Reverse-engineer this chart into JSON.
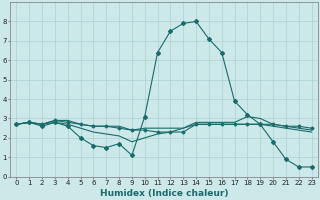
{
  "title": "",
  "xlabel": "Humidex (Indice chaleur)",
  "ylabel": "",
  "bg_color": "#cce8e8",
  "grid_color": "#aad0d0",
  "line_color": "#1a6b6b",
  "xlim": [
    -0.5,
    23.5
  ],
  "ylim": [
    0,
    9
  ],
  "xticks": [
    0,
    1,
    2,
    3,
    4,
    5,
    6,
    7,
    8,
    9,
    10,
    11,
    12,
    13,
    14,
    15,
    16,
    17,
    18,
    19,
    20,
    21,
    22,
    23
  ],
  "yticks": [
    0,
    1,
    2,
    3,
    4,
    5,
    6,
    7,
    8
  ],
  "series": [
    {
      "x": [
        0,
        1,
        2,
        3,
        4,
        5,
        6,
        7,
        8,
        9,
        10,
        11,
        12,
        13,
        14,
        15,
        16,
        17,
        18,
        19,
        20,
        21,
        22,
        23
      ],
      "y": [
        2.7,
        2.8,
        2.6,
        2.8,
        2.6,
        2.0,
        1.6,
        1.5,
        1.7,
        1.1,
        3.1,
        6.4,
        7.5,
        7.9,
        8.0,
        7.1,
        6.4,
        3.9,
        3.2,
        2.7,
        1.8,
        0.9,
        0.5,
        0.5
      ],
      "marker": "D",
      "markersize": 2.0
    },
    {
      "x": [
        0,
        1,
        2,
        3,
        4,
        5,
        6,
        7,
        8,
        9,
        10,
        11,
        12,
        13,
        14,
        15,
        16,
        17,
        18,
        19,
        20,
        21,
        22,
        23
      ],
      "y": [
        2.7,
        2.8,
        2.7,
        2.9,
        2.8,
        2.7,
        2.6,
        2.6,
        2.5,
        2.4,
        2.4,
        2.3,
        2.3,
        2.3,
        2.7,
        2.7,
        2.7,
        2.7,
        2.7,
        2.7,
        2.7,
        2.6,
        2.6,
        2.5
      ],
      "marker": "D",
      "markersize": 1.5
    },
    {
      "x": [
        0,
        1,
        2,
        3,
        4,
        5,
        6,
        7,
        8,
        9,
        10,
        11,
        12,
        13,
        14,
        15,
        16,
        17,
        18,
        19,
        20,
        21,
        22,
        23
      ],
      "y": [
        2.7,
        2.8,
        2.7,
        2.9,
        2.9,
        2.7,
        2.6,
        2.6,
        2.6,
        2.4,
        2.5,
        2.5,
        2.5,
        2.5,
        2.8,
        2.8,
        2.8,
        2.8,
        3.1,
        3.0,
        2.7,
        2.6,
        2.5,
        2.4
      ],
      "marker": null,
      "markersize": 0
    },
    {
      "x": [
        0,
        1,
        2,
        3,
        4,
        5,
        6,
        7,
        8,
        9,
        10,
        11,
        12,
        13,
        14,
        15,
        16,
        17,
        18,
        19,
        20,
        21,
        22,
        23
      ],
      "y": [
        2.7,
        2.8,
        2.7,
        2.8,
        2.7,
        2.5,
        2.3,
        2.2,
        2.1,
        1.8,
        2.0,
        2.2,
        2.3,
        2.5,
        2.7,
        2.7,
        2.7,
        2.7,
        2.7,
        2.7,
        2.6,
        2.5,
        2.4,
        2.3
      ],
      "marker": null,
      "markersize": 0
    }
  ],
  "tick_fontsize": 5.0,
  "xlabel_fontsize": 6.5
}
